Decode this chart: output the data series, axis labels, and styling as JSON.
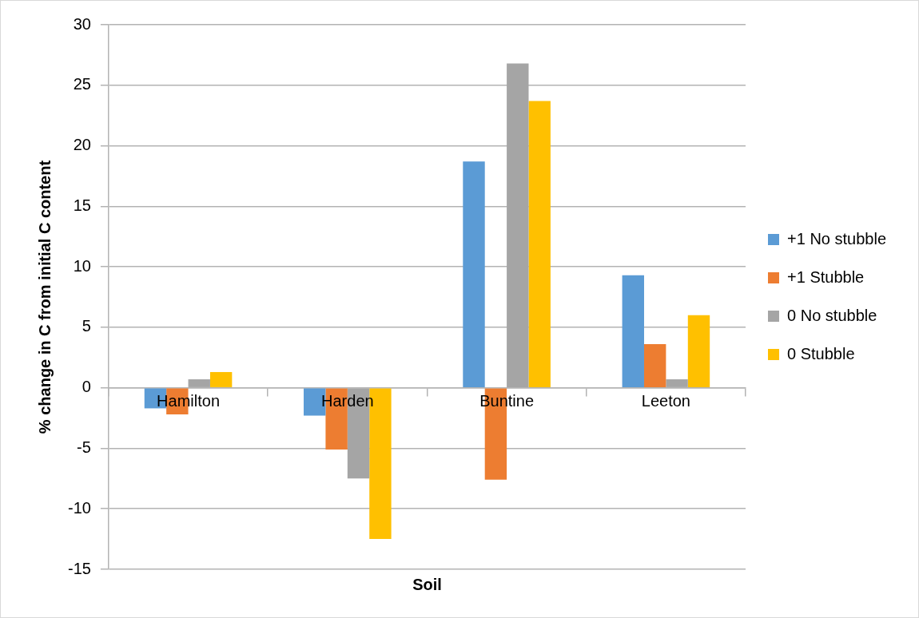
{
  "chart_data": {
    "type": "bar",
    "xlabel": "Soil",
    "ylabel": "% change in C from initial C content",
    "categories": [
      "Hamilton",
      "Harden",
      "Buntine",
      "Leeton"
    ],
    "series": [
      {
        "name": "+1 No stubble",
        "color": "#5b9bd5",
        "values": [
          -1.7,
          -2.3,
          18.7,
          9.3
        ]
      },
      {
        "name": "+1 Stubble",
        "color": "#ed7d31",
        "values": [
          -2.2,
          -5.1,
          -7.6,
          3.6
        ]
      },
      {
        "name": "0 No stubble",
        "color": "#a5a5a5",
        "values": [
          0.7,
          -7.5,
          26.8,
          0.7
        ]
      },
      {
        "name": "0 Stubble",
        "color": "#ffc000",
        "values": [
          1.3,
          -12.5,
          23.7,
          6.0
        ]
      }
    ],
    "ylim": [
      -15,
      30
    ],
    "yticks": [
      -15,
      -10,
      -5,
      0,
      5,
      10,
      15,
      20,
      25,
      30
    ],
    "grid": "y",
    "legend": "right"
  }
}
